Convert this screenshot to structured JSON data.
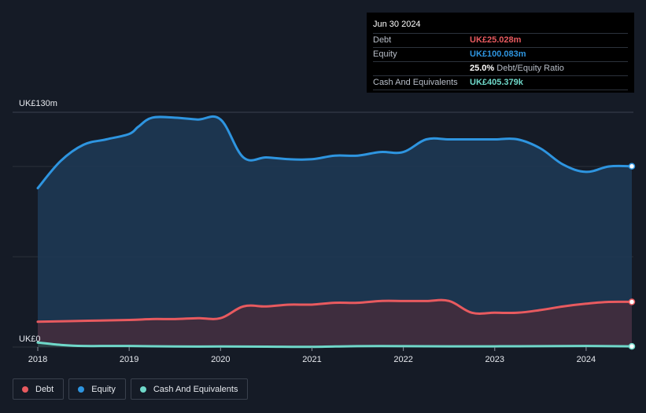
{
  "tooltip": {
    "date": "Jun 30 2024",
    "rows": [
      {
        "label": "Debt",
        "value": "UK£25.028m"
      },
      {
        "label": "Equity",
        "value": "UK£100.083m"
      },
      {
        "label": "",
        "value": "25.0%",
        "suffix": "Debt/Equity Ratio"
      },
      {
        "label": "Cash And Equivalents",
        "value": "UK£405.379k"
      }
    ]
  },
  "legend": [
    {
      "label": "Debt",
      "color": "#e85a5f"
    },
    {
      "label": "Equity",
      "color": "#2e95e0"
    },
    {
      "label": "Cash And Equivalents",
      "color": "#6fd8c9"
    }
  ],
  "chart_data": {
    "type": "area",
    "y_top_label": "UK£130m",
    "y_bottom_label": "UK£0",
    "ylim": [
      0,
      130
    ],
    "xlim": [
      2018.0,
      2024.5
    ],
    "x_ticks": [
      "2018",
      "2019",
      "2020",
      "2021",
      "2022",
      "2023",
      "2024"
    ],
    "colors": {
      "debt": "#e85a5f",
      "equity": "#2e95e0",
      "cash": "#6fd8c9"
    },
    "series": [
      {
        "name": "Equity",
        "x": [
          2018.0,
          2018.25,
          2018.5,
          2018.75,
          2019.0,
          2019.1,
          2019.25,
          2019.5,
          2019.75,
          2020.0,
          2020.25,
          2020.5,
          2020.75,
          2021.0,
          2021.25,
          2021.5,
          2021.75,
          2022.0,
          2022.25,
          2022.5,
          2022.75,
          2023.0,
          2023.25,
          2023.5,
          2023.75,
          2024.0,
          2024.25,
          2024.5
        ],
        "values": [
          88,
          103,
          112,
          115,
          118,
          122,
          127,
          127,
          126,
          126,
          105,
          105,
          104,
          104,
          106,
          106,
          108,
          108,
          115,
          115,
          115,
          115,
          115,
          110,
          101,
          97,
          100,
          100.1
        ]
      },
      {
        "name": "Debt",
        "x": [
          2018.0,
          2018.5,
          2019.0,
          2019.25,
          2019.5,
          2019.75,
          2020.0,
          2020.25,
          2020.5,
          2020.75,
          2021.0,
          2021.25,
          2021.5,
          2021.75,
          2022.0,
          2022.25,
          2022.5,
          2022.75,
          2023.0,
          2023.25,
          2023.5,
          2023.75,
          2024.0,
          2024.25,
          2024.5
        ],
        "values": [
          14,
          14.5,
          15,
          15.5,
          15.5,
          16,
          16,
          22.5,
          22.5,
          23.5,
          23.5,
          24.5,
          24.5,
          25.5,
          25.5,
          25.5,
          25.5,
          19,
          19,
          19,
          20.5,
          22.5,
          24,
          25,
          25.0
        ]
      },
      {
        "name": "Cash And Equivalents",
        "x": [
          2018.0,
          2018.25,
          2018.5,
          2019.0,
          2019.5,
          2020.0,
          2020.5,
          2021.0,
          2021.5,
          2022.0,
          2022.5,
          2023.0,
          2023.5,
          2024.0,
          2024.5
        ],
        "values": [
          2.5,
          1.2,
          0.6,
          0.6,
          0.3,
          0.3,
          0.2,
          0.1,
          0.5,
          0.5,
          0.4,
          0.4,
          0.5,
          0.6,
          0.4
        ]
      }
    ]
  }
}
